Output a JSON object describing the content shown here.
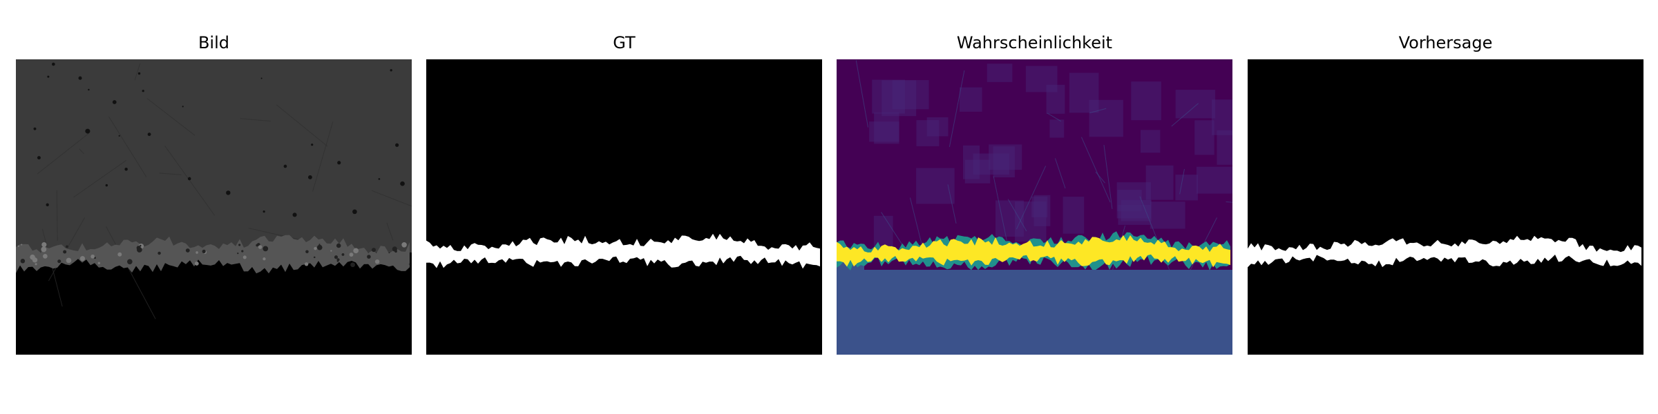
{
  "panels": [
    {
      "title": "Bild",
      "kind": "grayscale-image"
    },
    {
      "title": "GT",
      "kind": "binary-mask"
    },
    {
      "title": "Wahrscheinlichkeit",
      "kind": "probability-heatmap"
    },
    {
      "title": "Vorhersage",
      "kind": "binary-mask"
    }
  ],
  "colors": {
    "background": "#ffffff",
    "title_text": "#000000",
    "image_gray": "#3b3b3b",
    "mask_foreground": "#ffffff",
    "mask_background": "#000000",
    "prob_low": "#440154",
    "prob_high": "#fde725",
    "prob_mid": "#3b528b",
    "prob_edge": "#21918c"
  }
}
